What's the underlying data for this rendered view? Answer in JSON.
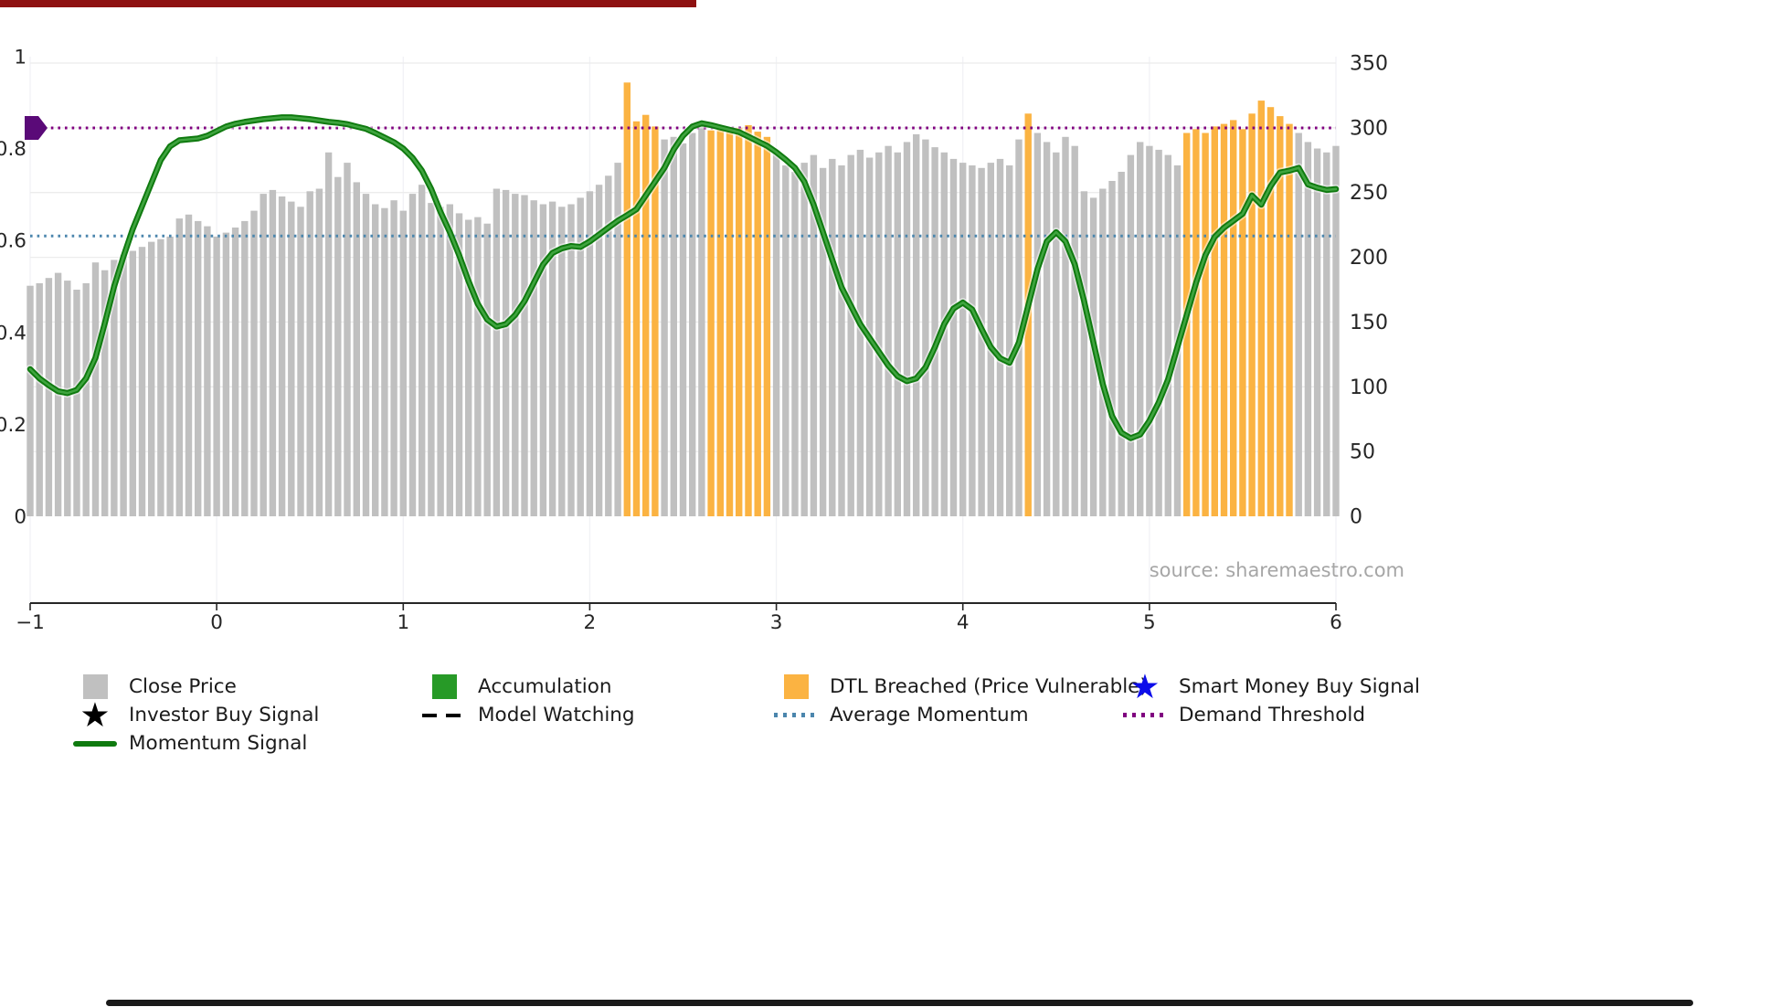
{
  "source_text": "source: sharemaestro.com",
  "chart_data": {
    "type": "bar",
    "title": "",
    "layout": {
      "legend_position": "bottom-left",
      "grid": true,
      "bottom_spine_detached": true
    },
    "x_axis": {
      "range": [
        -1,
        6
      ],
      "ticks": [
        -1,
        0,
        1,
        2,
        3,
        4,
        5,
        6
      ],
      "tick_labels": [
        "−1",
        "0",
        "1",
        "2",
        "3",
        "4",
        "5",
        "6"
      ]
    },
    "left_axis": {
      "range": [
        0,
        1
      ],
      "ticks": [
        0,
        0.2,
        0.4,
        0.6,
        0.8,
        1
      ],
      "tick_labels": [
        "0",
        "0.2",
        "0.4",
        "0.6",
        "0.8",
        "1"
      ]
    },
    "right_axis": {
      "range": [
        0,
        350
      ],
      "ticks": [
        0,
        50,
        100,
        150,
        200,
        250,
        300,
        350
      ],
      "tick_labels": [
        "0",
        "50",
        "100",
        "150",
        "200",
        "250",
        "300",
        "350"
      ]
    },
    "bars": {
      "name": "Close Price",
      "axis": "right",
      "x_start": -1,
      "x_step": 0.05,
      "color": "#c0c0c0",
      "breached_color": "#fbb342",
      "values": [
        178,
        180,
        184,
        188,
        182,
        175,
        180,
        196,
        190,
        198,
        202,
        205,
        208,
        212,
        214,
        216,
        230,
        233,
        228,
        224,
        216,
        219,
        223,
        228,
        236,
        249,
        252,
        247,
        243,
        239,
        251,
        253,
        281,
        262,
        273,
        258,
        249,
        241,
        238,
        244,
        236,
        249,
        256,
        242,
        239,
        241,
        234,
        229,
        231,
        226,
        253,
        252,
        249,
        248,
        244,
        241,
        243,
        239,
        241,
        246,
        251,
        256,
        263,
        273,
        335,
        305,
        310,
        301,
        291,
        293,
        288,
        296,
        301,
        298,
        301,
        297,
        300,
        302,
        297,
        293,
        281,
        271,
        266,
        273,
        279,
        269,
        276,
        271,
        279,
        283,
        277,
        281,
        286,
        281,
        289,
        295,
        291,
        285,
        281,
        276,
        273,
        271,
        269,
        273,
        276,
        271,
        291,
        311,
        296,
        289,
        281,
        293,
        286,
        251,
        246,
        253,
        259,
        266,
        279,
        289,
        286,
        283,
        279,
        271,
        296,
        299,
        296,
        301,
        303,
        306,
        299,
        311,
        321,
        316,
        309,
        303,
        296,
        289,
        284,
        281,
        286
      ],
      "dtl_breached_indices": [
        64,
        65,
        66,
        67,
        73,
        74,
        75,
        76,
        77,
        78,
        79,
        107,
        124,
        125,
        126,
        127,
        128,
        129,
        130,
        131,
        132,
        133,
        134,
        135
      ]
    },
    "momentum": {
      "name": "Momentum Signal",
      "type": "line",
      "axis": "left",
      "x_start": -1,
      "x_step": 0.05,
      "color": "#0f7a0f",
      "core_color": "#3fa43f",
      "values": [
        0.32,
        0.3,
        0.285,
        0.272,
        0.268,
        0.275,
        0.3,
        0.345,
        0.42,
        0.5,
        0.565,
        0.625,
        0.675,
        0.725,
        0.775,
        0.805,
        0.818,
        0.82,
        0.822,
        0.828,
        0.838,
        0.848,
        0.854,
        0.858,
        0.861,
        0.864,
        0.866,
        0.868,
        0.868,
        0.866,
        0.864,
        0.861,
        0.858,
        0.856,
        0.853,
        0.848,
        0.843,
        0.834,
        0.824,
        0.814,
        0.8,
        0.78,
        0.752,
        0.712,
        0.662,
        0.618,
        0.568,
        0.512,
        0.462,
        0.428,
        0.413,
        0.418,
        0.438,
        0.468,
        0.508,
        0.548,
        0.573,
        0.583,
        0.588,
        0.586,
        0.598,
        0.613,
        0.628,
        0.643,
        0.655,
        0.668,
        0.698,
        0.728,
        0.758,
        0.798,
        0.828,
        0.848,
        0.855,
        0.851,
        0.846,
        0.841,
        0.836,
        0.826,
        0.816,
        0.806,
        0.792,
        0.776,
        0.758,
        0.728,
        0.678,
        0.618,
        0.558,
        0.498,
        0.458,
        0.418,
        0.388,
        0.358,
        0.328,
        0.305,
        0.294,
        0.3,
        0.324,
        0.368,
        0.418,
        0.452,
        0.465,
        0.45,
        0.408,
        0.368,
        0.344,
        0.334,
        0.378,
        0.458,
        0.538,
        0.598,
        0.618,
        0.598,
        0.548,
        0.468,
        0.378,
        0.288,
        0.218,
        0.182,
        0.17,
        0.178,
        0.208,
        0.248,
        0.298,
        0.368,
        0.438,
        0.508,
        0.568,
        0.608,
        0.628,
        0.643,
        0.658,
        0.698,
        0.678,
        0.718,
        0.748,
        0.752,
        0.758,
        0.722,
        0.715,
        0.71,
        0.712
      ]
    },
    "average_momentum": {
      "value": 0.61,
      "color": "#4b86ad",
      "style": "dotted"
    },
    "demand_threshold": {
      "value": 0.845,
      "color": "#800080",
      "style": "dotted"
    },
    "threshold_marker": {
      "x": -1,
      "value": 0.845,
      "color": "#5a0a78",
      "shape": "right-arrow"
    }
  },
  "legend": {
    "items": [
      {
        "label": "Close Price",
        "swatch": "square",
        "color": "#c0c0c0",
        "icon_name": "close-price-swatch"
      },
      {
        "label": "Accumulation",
        "swatch": "square",
        "color": "#279a27",
        "icon_name": "accumulation-swatch"
      },
      {
        "label": "DTL Breached (Price Vulnerable)",
        "swatch": "square",
        "color": "#fbb342",
        "icon_name": "dtl-breached-swatch"
      },
      {
        "label": "Smart Money Buy Signal",
        "swatch": "star",
        "color": "#0d0dea",
        "icon_name": "smart-money-buy-star-icon"
      },
      {
        "label": "Investor Buy Signal",
        "swatch": "star",
        "color": "#000000",
        "icon_name": "investor-buy-star-icon"
      },
      {
        "label": "Model Watching",
        "swatch": "dashed-line",
        "color": "#000000",
        "icon_name": "model-watching-dash-icon"
      },
      {
        "label": "Average Momentum",
        "swatch": "dotted-line",
        "color": "#4b86ad",
        "icon_name": "average-momentum-dotted-icon"
      },
      {
        "label": "Demand Threshold",
        "swatch": "dotted-line",
        "color": "#800080",
        "icon_name": "demand-threshold-dotted-icon"
      },
      {
        "label": "Momentum Signal",
        "swatch": "solid-line",
        "color": "#0f7a0f",
        "icon_name": "momentum-signal-line-icon"
      }
    ]
  }
}
